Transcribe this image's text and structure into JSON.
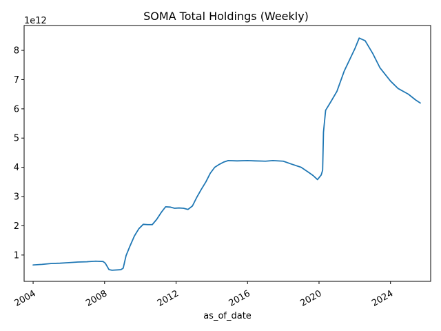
{
  "chart_data": {
    "type": "line",
    "title": "SOMA Total Holdings (Weekly)",
    "xlabel": "as_of_date",
    "ylabel": "",
    "y_offset_label": "1e12",
    "y_ticks": [
      1,
      2,
      3,
      4,
      5,
      6,
      7,
      8
    ],
    "y_tick_labels": [
      "1",
      "2",
      "3",
      "4",
      "5",
      "6",
      "7",
      "8"
    ],
    "x_ticks": [
      "2004-01-01",
      "2008-01-01",
      "2012-01-01",
      "2016-01-01",
      "2020-01-01",
      "2024-01-01"
    ],
    "x_tick_labels": [
      "2004",
      "2008",
      "2012",
      "2016",
      "2020",
      "2024"
    ],
    "xlim": [
      "2003-07-01",
      "2026-04-01"
    ],
    "ylim": [
      0.1,
      8.85
    ],
    "grid": false,
    "line_color": "#1f77b4",
    "series": [
      {
        "x": [
          "2004-01-01",
          "2004-07-01",
          "2005-01-01",
          "2005-07-01",
          "2006-01-01",
          "2006-07-01",
          "2007-01-01",
          "2007-07-01",
          "2007-12-01",
          "2008-01-15",
          "2008-04-01",
          "2008-06-01",
          "2008-12-01",
          "2009-01-15",
          "2009-03-15",
          "2009-06-01",
          "2009-09-01",
          "2009-12-01",
          "2010-03-01",
          "2010-06-01",
          "2010-09-01",
          "2010-12-01",
          "2011-03-01",
          "2011-06-01",
          "2011-09-01",
          "2011-12-01",
          "2012-03-01",
          "2012-06-01",
          "2012-09-01",
          "2012-12-01",
          "2013-03-01",
          "2013-06-01",
          "2013-09-01",
          "2013-12-01",
          "2014-03-01",
          "2014-06-01",
          "2014-09-01",
          "2014-12-01",
          "2015-06-01",
          "2016-01-01",
          "2016-06-01",
          "2017-01-01",
          "2017-06-01",
          "2018-01-01",
          "2018-06-01",
          "2019-01-01",
          "2019-06-01",
          "2019-09-01",
          "2019-12-01",
          "2020-02-15",
          "2020-03-15",
          "2020-04-01",
          "2020-05-15",
          "2020-09-01",
          "2021-01-01",
          "2021-06-01",
          "2022-01-01",
          "2022-04-01",
          "2022-08-01",
          "2023-01-01",
          "2023-06-01",
          "2024-01-01",
          "2024-06-01",
          "2025-01-01",
          "2025-06-01",
          "2025-09-01"
        ],
        "values": [
          0.66,
          0.68,
          0.71,
          0.72,
          0.74,
          0.76,
          0.77,
          0.79,
          0.78,
          0.72,
          0.5,
          0.48,
          0.5,
          0.55,
          0.98,
          1.3,
          1.65,
          1.9,
          2.05,
          2.04,
          2.04,
          2.22,
          2.45,
          2.65,
          2.64,
          2.6,
          2.61,
          2.6,
          2.56,
          2.68,
          2.98,
          3.25,
          3.5,
          3.8,
          4.0,
          4.1,
          4.18,
          4.23,
          4.22,
          4.23,
          4.22,
          4.21,
          4.23,
          4.21,
          4.12,
          4.0,
          3.83,
          3.72,
          3.58,
          3.74,
          3.9,
          5.2,
          5.95,
          6.25,
          6.6,
          7.3,
          8.05,
          8.42,
          8.33,
          7.9,
          7.4,
          6.95,
          6.7,
          6.5,
          6.3,
          6.2
        ]
      }
    ]
  }
}
